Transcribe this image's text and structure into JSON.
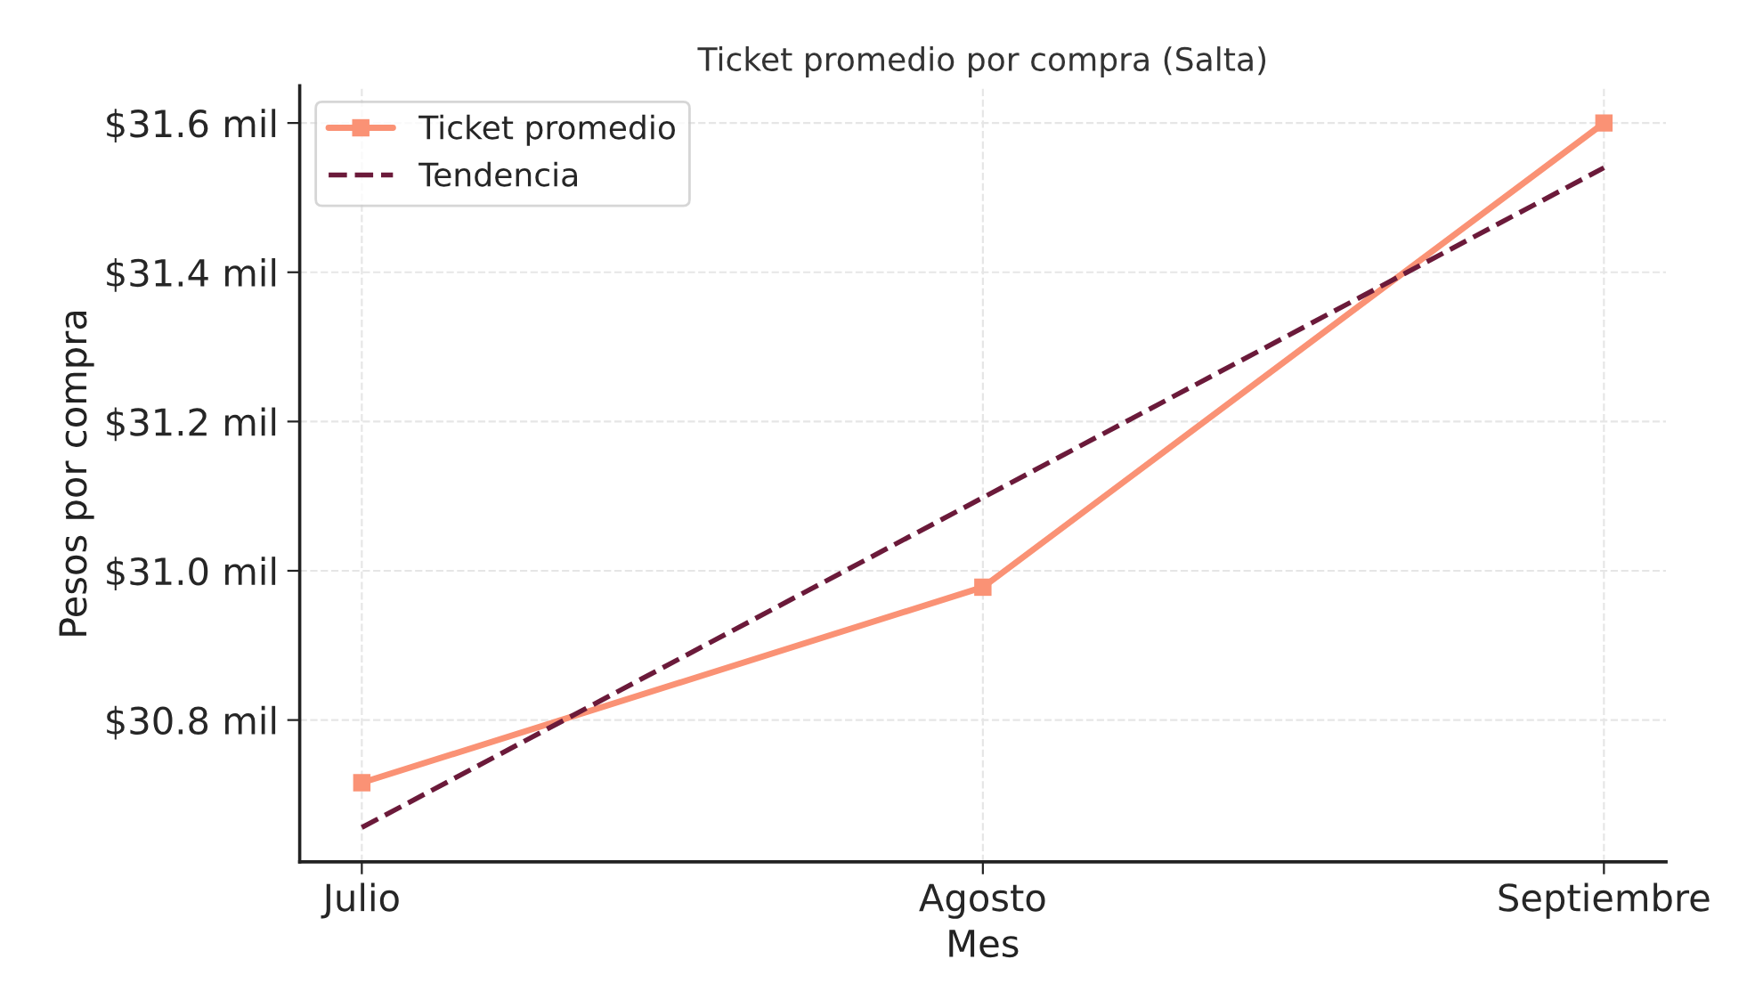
{
  "chart_data": {
    "type": "line",
    "title": "Ticket promedio por compra (Salta)",
    "xlabel": "Mes",
    "ylabel": "Pesos por compra",
    "categories": [
      "Julio",
      "Agosto",
      "Septiembre"
    ],
    "series": [
      {
        "name": "Ticket promedio",
        "color": "#fa9275",
        "values": [
          30.716,
          30.978,
          31.6
        ],
        "marker": "square",
        "line_style": "solid"
      },
      {
        "name": "Tendencia",
        "color": "#6b1a3a",
        "values": [
          30.656,
          31.098,
          31.54
        ],
        "marker": "none",
        "line_style": "dashed"
      }
    ],
    "ylim": [
      30.61,
      31.65
    ],
    "yticks": [
      {
        "value": 30.8,
        "label": "$30.8 mil"
      },
      {
        "value": 31.0,
        "label": "$31.0 mil"
      },
      {
        "value": 31.2,
        "label": "$31.2 mil"
      },
      {
        "value": 31.4,
        "label": "$31.4 mil"
      },
      {
        "value": 31.6,
        "label": "$31.6 mil"
      }
    ],
    "grid": true,
    "legend": "top left"
  }
}
